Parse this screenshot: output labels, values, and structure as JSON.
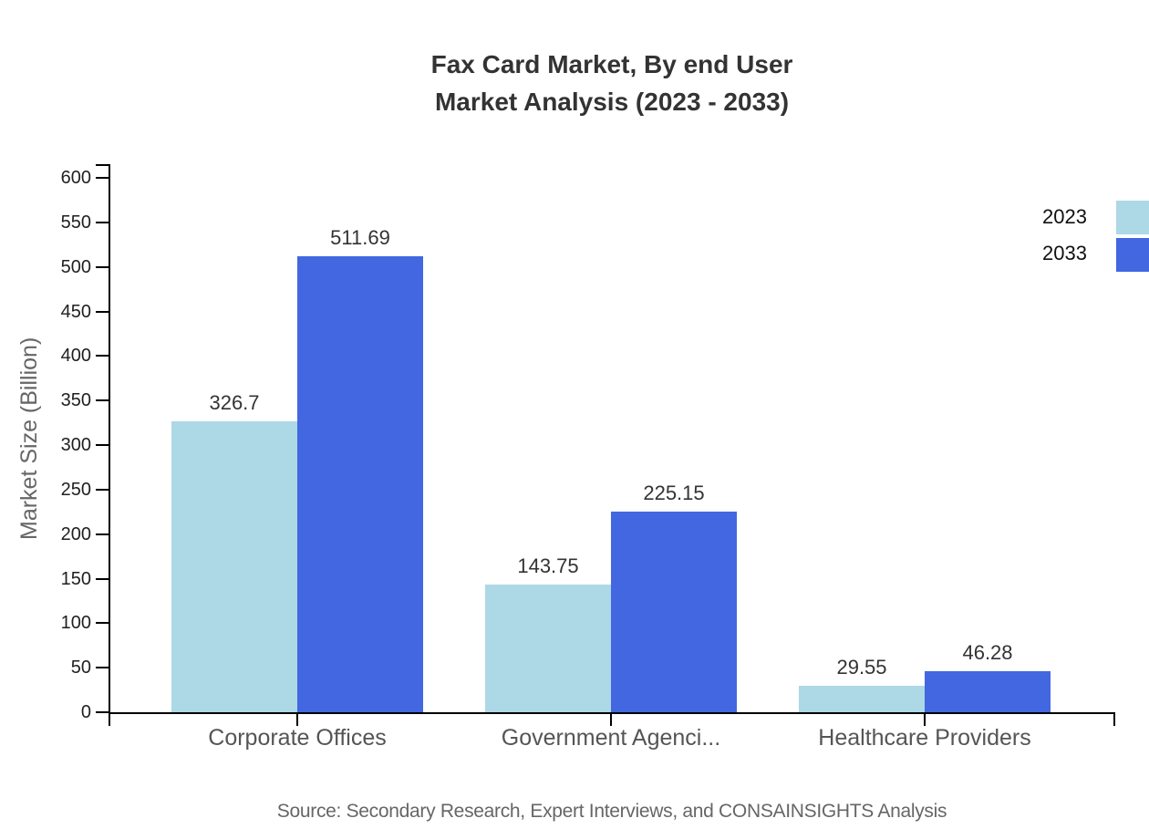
{
  "title": {
    "line1": "Fax Card Market, By end User",
    "line2": "Market Analysis (2023 - 2033)"
  },
  "source": "Source: Secondary Research, Expert Interviews, and CONSAINSIGHTS Analysis",
  "colors": {
    "series_2023": "#ADD8E6",
    "series_2033": "#4267E1",
    "axis": "#000000",
    "title_text": "#333333",
    "category_text": "#555555",
    "source_text": "#666666"
  },
  "chart_data": {
    "type": "bar",
    "title": "Fax Card Market, By end User Market Analysis (2023 - 2033)",
    "categories": [
      "Corporate Offices",
      "Government Agenci...",
      "Healthcare Providers"
    ],
    "series": [
      {
        "name": "2023",
        "color": "#ADD8E6",
        "values": [
          326.7,
          143.75,
          29.55
        ]
      },
      {
        "name": "2033",
        "color": "#4267E1",
        "values": [
          511.69,
          225.15,
          46.28
        ]
      }
    ],
    "value_labels": [
      [
        "326.7",
        "143.75",
        "29.55"
      ],
      [
        "511.69",
        "225.15",
        "46.28"
      ]
    ],
    "xlabel": "",
    "ylabel": "Market Size (Billion)",
    "ylim": [
      0,
      600
    ],
    "yticks": [
      0,
      50,
      100,
      150,
      200,
      250,
      300,
      350,
      400,
      450,
      500,
      550,
      600
    ],
    "grid": false,
    "legend_position": "top-right",
    "legend": [
      "2023",
      "2033"
    ]
  }
}
